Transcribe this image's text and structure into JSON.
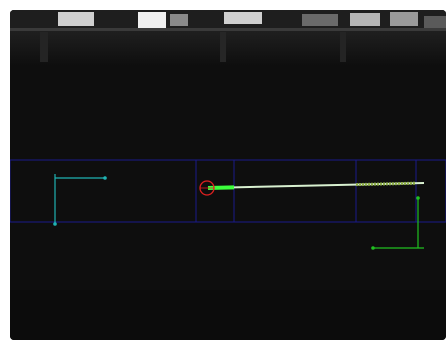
{
  "viewer": {
    "background_color": "#0e0e0e",
    "overlay_colors": {
      "roi_band": "#1a1a8a",
      "datum_marks": "#1fb3b3",
      "needle_line": "#d8f0d0",
      "needle_highlight": "#3cff3c",
      "origin_marker": "#e02020",
      "end_bracket": "#20c020"
    },
    "icons": {
      "origin_marker": "target-circle-icon",
      "left_bracket": "corner-bracket-icon",
      "right_bracket": "corner-bracket-icon"
    }
  }
}
